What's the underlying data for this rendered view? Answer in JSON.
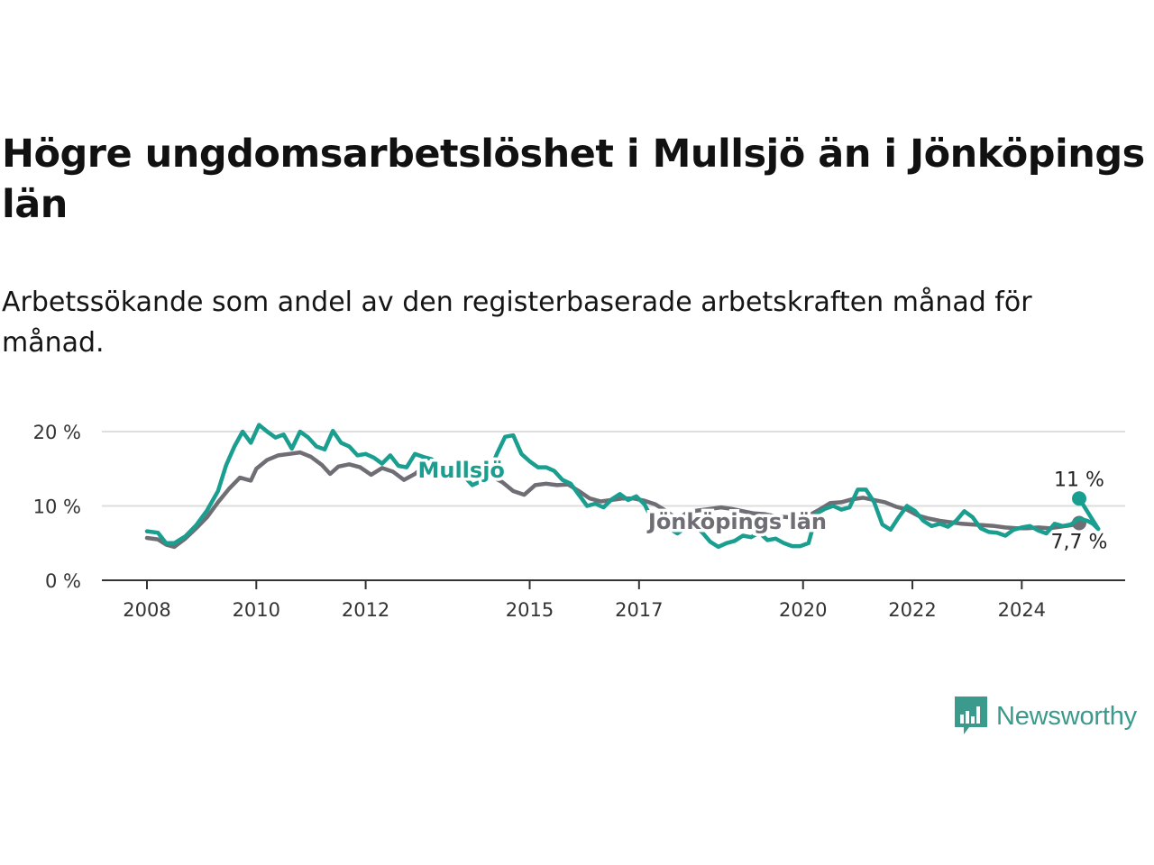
{
  "title": "Högre ungdomsarbetslöshet i Mullsjö än i Jönköpings län",
  "subtitle": "Arbetssökande som andel av den registerbaserade arbetskraften månad för månad.",
  "brand": {
    "name": "Newsworthy",
    "color": "#3a9a8c"
  },
  "colors": {
    "mullsjo": "#1a9e8f",
    "lan": "#6e6e74",
    "grid": "#dedede",
    "axis": "#333333"
  },
  "chart_data": {
    "type": "line",
    "title": "Högre ungdomsarbetslöshet i Mullsjö än i Jönköpings län",
    "xlabel": "",
    "ylabel": "",
    "ylim": [
      0,
      20
    ],
    "xlim": [
      2008.0,
      2025.25
    ],
    "grid": true,
    "y_ticks": [
      {
        "value": 0,
        "label": "0 %"
      },
      {
        "value": 10,
        "label": "10 %"
      },
      {
        "value": 20,
        "label": "20 %"
      }
    ],
    "x_ticks": [
      {
        "value": 2008,
        "label": "2008"
      },
      {
        "value": 2010,
        "label": "2010"
      },
      {
        "value": 2012,
        "label": "2012"
      },
      {
        "value": 2015,
        "label": "2015"
      },
      {
        "value": 2017,
        "label": "2017"
      },
      {
        "value": 2020,
        "label": "2020"
      },
      {
        "value": 2022,
        "label": "2022"
      },
      {
        "value": 2024,
        "label": "2024"
      }
    ],
    "series": [
      {
        "name": "Jönköpings län",
        "color": "#6e6e74",
        "label": "Jönköpings län",
        "label_anchor": [
          2018.8,
          7.9
        ],
        "end_label": "7,7 %",
        "points": [
          [
            2008.0,
            5.7
          ],
          [
            2008.2,
            5.5
          ],
          [
            2008.35,
            4.8
          ],
          [
            2008.5,
            4.5
          ],
          [
            2008.7,
            5.6
          ],
          [
            2008.9,
            7.0
          ],
          [
            2009.1,
            8.5
          ],
          [
            2009.3,
            10.5
          ],
          [
            2009.5,
            12.3
          ],
          [
            2009.7,
            13.8
          ],
          [
            2009.9,
            13.4
          ],
          [
            2010.0,
            15.0
          ],
          [
            2010.2,
            16.2
          ],
          [
            2010.4,
            16.8
          ],
          [
            2010.6,
            17.0
          ],
          [
            2010.8,
            17.2
          ],
          [
            2011.0,
            16.6
          ],
          [
            2011.2,
            15.5
          ],
          [
            2011.35,
            14.3
          ],
          [
            2011.5,
            15.3
          ],
          [
            2011.7,
            15.6
          ],
          [
            2011.9,
            15.2
          ],
          [
            2012.1,
            14.2
          ],
          [
            2012.3,
            15.1
          ],
          [
            2012.5,
            14.6
          ],
          [
            2012.7,
            13.5
          ],
          [
            2012.9,
            14.3
          ],
          [
            2013.1,
            15.5
          ],
          [
            2013.3,
            15.2
          ],
          [
            2013.5,
            15.3
          ],
          [
            2013.7,
            14.7
          ],
          [
            2013.9,
            14.8
          ],
          [
            2014.1,
            13.8
          ],
          [
            2014.3,
            14.0
          ],
          [
            2014.5,
            13.2
          ],
          [
            2014.7,
            12.0
          ],
          [
            2014.9,
            11.5
          ],
          [
            2015.1,
            12.8
          ],
          [
            2015.3,
            13.0
          ],
          [
            2015.5,
            12.8
          ],
          [
            2015.7,
            12.9
          ],
          [
            2015.9,
            12.0
          ],
          [
            2016.1,
            11.0
          ],
          [
            2016.3,
            10.6
          ],
          [
            2016.5,
            10.8
          ],
          [
            2016.7,
            11.0
          ],
          [
            2016.9,
            11.0
          ],
          [
            2017.1,
            10.7
          ],
          [
            2017.3,
            10.2
          ],
          [
            2017.5,
            9.3
          ],
          [
            2017.7,
            8.2
          ],
          [
            2017.9,
            9.2
          ],
          [
            2018.1,
            9.4
          ],
          [
            2018.3,
            9.6
          ],
          [
            2018.5,
            9.8
          ],
          [
            2018.7,
            9.6
          ],
          [
            2018.9,
            9.3
          ],
          [
            2019.1,
            9.0
          ],
          [
            2019.3,
            8.9
          ],
          [
            2019.5,
            8.6
          ],
          [
            2019.7,
            8.5
          ],
          [
            2019.9,
            8.4
          ],
          [
            2020.1,
            8.7
          ],
          [
            2020.3,
            9.5
          ],
          [
            2020.5,
            10.4
          ],
          [
            2020.7,
            10.5
          ],
          [
            2020.9,
            10.9
          ],
          [
            2021.1,
            11.1
          ],
          [
            2021.3,
            10.8
          ],
          [
            2021.5,
            10.5
          ],
          [
            2021.7,
            9.9
          ],
          [
            2021.9,
            9.5
          ],
          [
            2022.1,
            8.7
          ],
          [
            2022.3,
            8.3
          ],
          [
            2022.5,
            8.0
          ],
          [
            2022.7,
            7.8
          ],
          [
            2022.9,
            7.6
          ],
          [
            2023.1,
            7.5
          ],
          [
            2023.3,
            7.4
          ],
          [
            2023.5,
            7.3
          ],
          [
            2023.7,
            7.1
          ],
          [
            2023.9,
            7.0
          ],
          [
            2024.1,
            7.0
          ],
          [
            2024.3,
            7.1
          ],
          [
            2024.5,
            7.0
          ],
          [
            2024.7,
            7.2
          ],
          [
            2024.9,
            7.4
          ],
          [
            2025.05,
            7.7
          ]
        ]
      },
      {
        "name": "Mullsjö",
        "color": "#1a9e8f",
        "label": "Mullsjö",
        "label_anchor": [
          2013.75,
          14.8
        ],
        "end_label": "11 %",
        "points": [
          [
            2008.0,
            6.6
          ],
          [
            2008.2,
            6.4
          ],
          [
            2008.35,
            5.0
          ],
          [
            2008.5,
            5.0
          ],
          [
            2008.7,
            5.9
          ],
          [
            2008.9,
            7.4
          ],
          [
            2009.1,
            9.4
          ],
          [
            2009.3,
            12.0
          ],
          [
            2009.45,
            15.5
          ],
          [
            2009.6,
            18.0
          ],
          [
            2009.75,
            20.0
          ],
          [
            2009.9,
            18.5
          ],
          [
            2010.05,
            20.9
          ],
          [
            2010.2,
            20.0
          ],
          [
            2010.35,
            19.2
          ],
          [
            2010.5,
            19.6
          ],
          [
            2010.65,
            17.7
          ],
          [
            2010.8,
            20.0
          ],
          [
            2010.95,
            19.2
          ],
          [
            2011.1,
            18.0
          ],
          [
            2011.25,
            17.6
          ],
          [
            2011.4,
            20.1
          ],
          [
            2011.55,
            18.5
          ],
          [
            2011.7,
            18.0
          ],
          [
            2011.85,
            16.8
          ],
          [
            2012.0,
            17.0
          ],
          [
            2012.15,
            16.5
          ],
          [
            2012.3,
            15.7
          ],
          [
            2012.45,
            16.8
          ],
          [
            2012.6,
            15.4
          ],
          [
            2012.75,
            15.2
          ],
          [
            2012.9,
            17.0
          ],
          [
            2013.05,
            16.6
          ],
          [
            2013.2,
            16.3
          ],
          [
            2013.35,
            15.4
          ],
          [
            2013.5,
            14.2
          ],
          [
            2013.65,
            15.5
          ],
          [
            2013.8,
            14.0
          ],
          [
            2013.95,
            12.8
          ],
          [
            2014.1,
            13.3
          ],
          [
            2014.25,
            14.3
          ],
          [
            2014.4,
            17.0
          ],
          [
            2014.55,
            19.3
          ],
          [
            2014.7,
            19.5
          ],
          [
            2014.85,
            17.0
          ],
          [
            2015.0,
            16.0
          ],
          [
            2015.15,
            15.2
          ],
          [
            2015.3,
            15.2
          ],
          [
            2015.45,
            14.7
          ],
          [
            2015.6,
            13.5
          ],
          [
            2015.75,
            13.0
          ],
          [
            2015.9,
            11.5
          ],
          [
            2016.05,
            10.0
          ],
          [
            2016.2,
            10.3
          ],
          [
            2016.35,
            9.8
          ],
          [
            2016.5,
            10.9
          ],
          [
            2016.65,
            11.6
          ],
          [
            2016.8,
            10.8
          ],
          [
            2016.95,
            11.3
          ],
          [
            2017.1,
            10.2
          ],
          [
            2017.25,
            8.0
          ],
          [
            2017.4,
            7.4
          ],
          [
            2017.55,
            7.0
          ],
          [
            2017.7,
            6.3
          ],
          [
            2017.85,
            7.1
          ],
          [
            2018.0,
            7.3
          ],
          [
            2018.15,
            6.5
          ],
          [
            2018.3,
            5.2
          ],
          [
            2018.45,
            4.5
          ],
          [
            2018.6,
            5.0
          ],
          [
            2018.75,
            5.3
          ],
          [
            2018.9,
            6.0
          ],
          [
            2019.05,
            5.8
          ],
          [
            2019.2,
            6.4
          ],
          [
            2019.35,
            5.4
          ],
          [
            2019.5,
            5.6
          ],
          [
            2019.65,
            5.0
          ],
          [
            2019.8,
            4.6
          ],
          [
            2019.95,
            4.6
          ],
          [
            2020.1,
            5.0
          ],
          [
            2020.25,
            9.0
          ],
          [
            2020.4,
            9.6
          ],
          [
            2020.55,
            10.0
          ],
          [
            2020.7,
            9.5
          ],
          [
            2020.85,
            9.8
          ],
          [
            2021.0,
            12.2
          ],
          [
            2021.15,
            12.2
          ],
          [
            2021.3,
            10.5
          ],
          [
            2021.45,
            7.5
          ],
          [
            2021.6,
            6.8
          ],
          [
            2021.75,
            8.5
          ],
          [
            2021.9,
            10.0
          ],
          [
            2022.05,
            9.3
          ],
          [
            2022.2,
            8.0
          ],
          [
            2022.35,
            7.3
          ],
          [
            2022.5,
            7.6
          ],
          [
            2022.65,
            7.2
          ],
          [
            2022.8,
            8.0
          ],
          [
            2022.95,
            9.3
          ],
          [
            2023.1,
            8.5
          ],
          [
            2023.25,
            7.0
          ],
          [
            2023.4,
            6.5
          ],
          [
            2023.55,
            6.4
          ],
          [
            2023.7,
            6.0
          ],
          [
            2023.85,
            6.8
          ],
          [
            2024.0,
            7.1
          ],
          [
            2024.15,
            7.3
          ],
          [
            2024.3,
            6.7
          ],
          [
            2024.45,
            6.3
          ],
          [
            2024.6,
            7.6
          ],
          [
            2024.75,
            7.3
          ],
          [
            2024.9,
            7.5
          ],
          [
            2025.05,
            8.3
          ],
          [
            2025.2,
            8.0
          ],
          [
            2025.3,
            7.6
          ],
          [
            2025.4,
            6.9
          ],
          [
            2025.05,
            11.0
          ]
        ]
      }
    ]
  }
}
